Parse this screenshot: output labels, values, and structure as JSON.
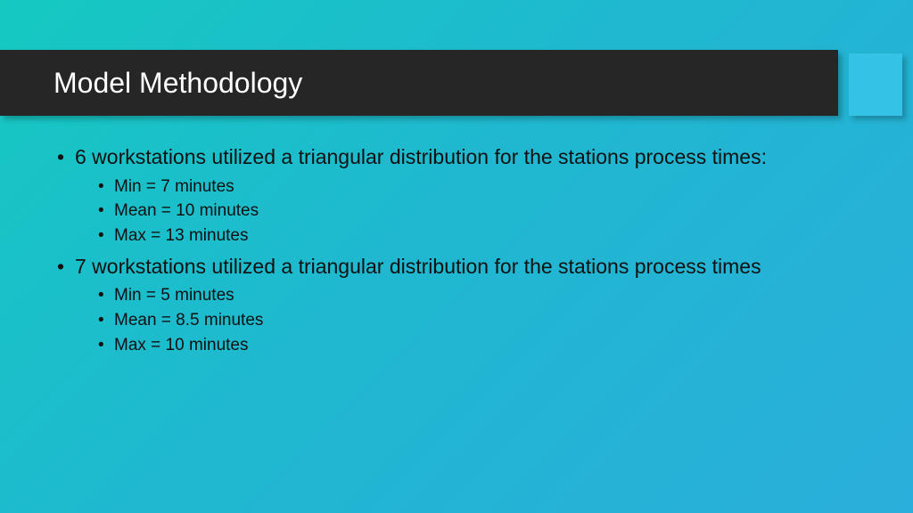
{
  "slide": {
    "title": "Model Methodology",
    "bullets": [
      {
        "text": "6 workstations utilized a triangular distribution for the stations process times:",
        "sub": [
          "Min = 7 minutes",
          "Mean = 10 minutes",
          "Max = 13 minutes"
        ]
      },
      {
        "text": "7 workstations utilized a triangular distribution for the stations process times",
        "sub": [
          "Min = 5 minutes",
          "Mean = 8.5 minutes",
          "Max = 10 minutes"
        ]
      }
    ]
  },
  "style": {
    "bg_gradient_start": "#15c9c1",
    "bg_gradient_end": "#2aaedb",
    "title_bar_bg": "#262626",
    "title_color": "#ffffff",
    "accent_color": "#34c3e6",
    "body_text_color": "#111111",
    "title_fontsize": 32,
    "l1_fontsize": 23,
    "l2_fontsize": 19
  }
}
